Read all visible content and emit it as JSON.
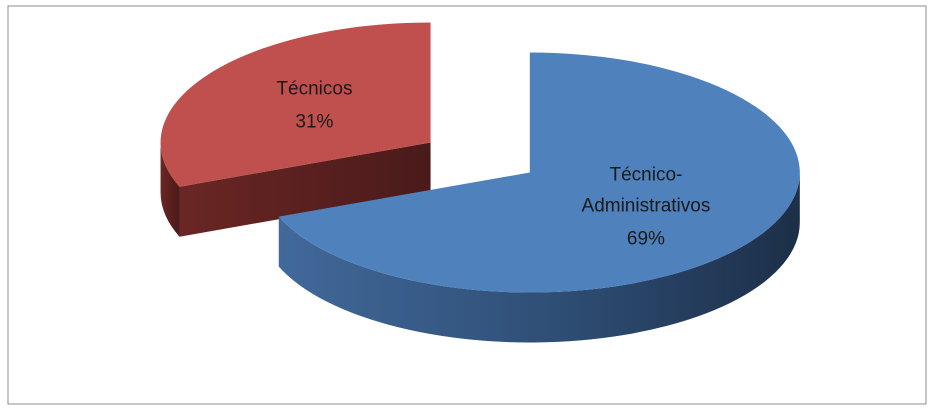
{
  "chart_data": {
    "type": "pie",
    "categories": [
      "Técnico-Administrativos",
      "Técnicos"
    ],
    "values": [
      69,
      31
    ],
    "value_labels": [
      "69%",
      "31%"
    ],
    "colors": [
      "#4f81bd",
      "#c0504d"
    ],
    "exploded": true,
    "three_d": true
  }
}
